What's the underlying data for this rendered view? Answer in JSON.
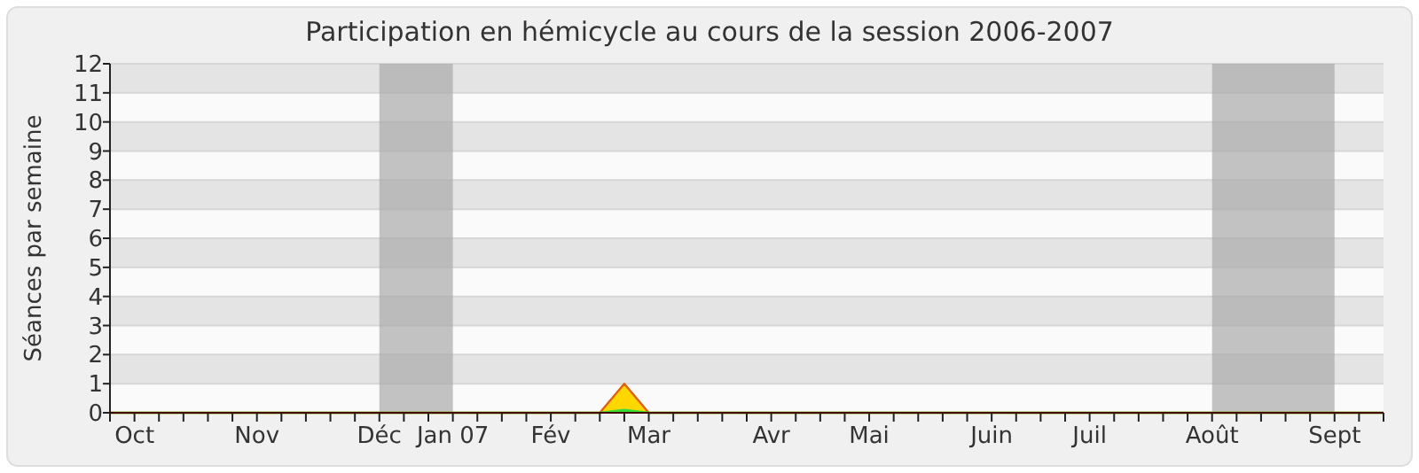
{
  "chart_data": {
    "type": "area",
    "title": "Participation en hémicycle au cours de la session 2006-2007",
    "ylabel": "Séances par semaine",
    "categories": [
      null,
      "Oct",
      null,
      null,
      null,
      null,
      "Nov",
      null,
      null,
      null,
      null,
      "Déc",
      null,
      null,
      "Jan 07",
      null,
      null,
      null,
      "Fév",
      null,
      null,
      null,
      "Mar",
      null,
      null,
      null,
      null,
      "Avr",
      null,
      null,
      null,
      "Mai",
      null,
      null,
      null,
      null,
      "Juin",
      null,
      null,
      null,
      "Juil",
      null,
      null,
      null,
      null,
      "Août",
      null,
      null,
      null,
      null,
      "Sept",
      null,
      null
    ],
    "series": [
      {
        "color": "#ffd700",
        "values": [
          0,
          0,
          0,
          0,
          0,
          0,
          0,
          0,
          0,
          0,
          0,
          0,
          0,
          0,
          0,
          0,
          0,
          0,
          0,
          0,
          0,
          1,
          0,
          0,
          0,
          0,
          0,
          0,
          0,
          0,
          0,
          0,
          0,
          0,
          0,
          0,
          0,
          0,
          0,
          0,
          0,
          0,
          0,
          0,
          0,
          0,
          0,
          0,
          0,
          0,
          0,
          0,
          0
        ]
      },
      {
        "color": "#33dd33",
        "values": [
          0,
          0,
          0,
          0,
          0,
          0,
          0,
          0,
          0,
          0,
          0,
          0,
          0,
          0,
          0,
          0,
          0,
          0,
          0,
          0,
          0,
          0.1,
          0,
          0,
          0,
          0,
          0,
          0,
          0,
          0,
          0,
          0,
          0,
          0,
          0,
          0,
          0,
          0,
          0,
          0,
          0,
          0,
          0,
          0,
          0,
          0,
          0,
          0,
          0,
          0,
          0,
          0,
          0
        ]
      }
    ],
    "ylim": [
      0,
      12
    ],
    "yticks": [
      0,
      1,
      2,
      3,
      4,
      5,
      6,
      7,
      8,
      9,
      10,
      11,
      12
    ],
    "bands": [
      {
        "axis": "x",
        "from": "Déc",
        "to": "Jan 07",
        "color": "#aaaaaa"
      },
      {
        "axis": "x",
        "from": "Août",
        "to": "Sept",
        "color": "#aaaaaa"
      }
    ],
    "grid": "y"
  }
}
